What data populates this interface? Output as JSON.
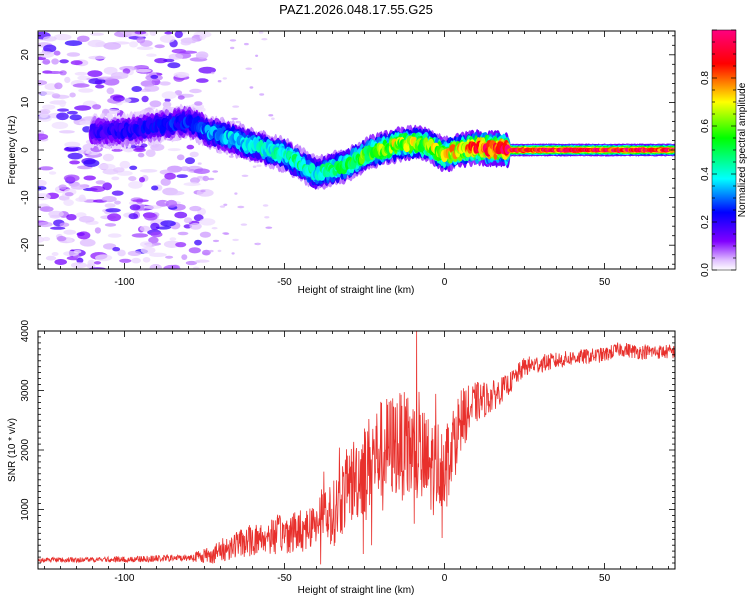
{
  "title": "PAZ1.2026.048.17.55.G25",
  "chart_data": [
    {
      "type": "heatmap",
      "name": "spectrogram",
      "xlabel": "Height of straight line (km)",
      "ylabel": "Frequency (Hz)",
      "xlim": [
        -127,
        72
      ],
      "ylim": [
        -25,
        25
      ],
      "xticks": [
        -100,
        -50,
        0,
        50
      ],
      "xtick_labels": [
        "-100",
        "-50",
        "0",
        "50"
      ],
      "yticks": [
        -20,
        -10,
        0,
        10,
        20
      ],
      "ytick_labels": [
        "-20",
        "-10",
        "0",
        "10",
        "20"
      ],
      "colorbar": {
        "label": "Normalized spectral amplitude",
        "range": [
          0,
          1
        ],
        "ticks": [
          0,
          0.2,
          0.4,
          0.6,
          0.8
        ],
        "tick_labels": [
          "0.0",
          "0.2",
          "0.4",
          "0.6",
          "0.8"
        ],
        "colors": [
          "#ffffff",
          "#e0c0ff",
          "#8000ff",
          "#0000ff",
          "#00ffff",
          "#00ff00",
          "#ffff00",
          "#ff0000",
          "#ff0080"
        ]
      },
      "ridge": {
        "x": [
          -127,
          -100,
          -90,
          -80,
          -74,
          -60,
          -50,
          -45,
          -40,
          -35,
          -30,
          -25,
          -20,
          -15,
          -10,
          -5,
          0,
          5,
          10,
          15,
          20,
          72
        ],
        "y_hz": [
          4,
          4,
          5,
          6,
          4,
          1,
          -1,
          -3,
          -5,
          -4,
          -3,
          -1,
          0,
          1,
          1.5,
          1,
          -1,
          0,
          0.5,
          0.3,
          0,
          0
        ],
        "peak_amplitude": [
          0.15,
          0.2,
          0.22,
          0.25,
          0.3,
          0.4,
          0.42,
          0.45,
          0.4,
          0.45,
          0.5,
          0.55,
          0.6,
          0.65,
          0.62,
          0.6,
          0.68,
          0.72,
          0.8,
          0.85,
          0.92,
          0.9
        ]
      }
    },
    {
      "type": "line",
      "name": "snr",
      "xlabel": "Height of straight line (km)",
      "ylabel": "SNR (10 * v/v)",
      "xlim": [
        -127,
        72
      ],
      "ylim": [
        0,
        4000
      ],
      "xticks": [
        -100,
        -50,
        0,
        50
      ],
      "xtick_labels": [
        "-100",
        "-50",
        "0",
        "50"
      ],
      "yticks": [
        1000,
        2000,
        3000,
        4000
      ],
      "ytick_labels": [
        "1000",
        "2000",
        "3000",
        "4000"
      ],
      "color": "#e8302c",
      "trend": {
        "x": [
          -127,
          -100,
          -80,
          -72,
          -65,
          -55,
          -45,
          -35,
          -30,
          -25,
          -20,
          -15,
          -10,
          -5,
          0,
          5,
          10,
          15,
          20,
          25,
          30,
          40,
          50,
          55,
          60,
          72
        ],
        "y": [
          150,
          160,
          190,
          250,
          420,
          550,
          650,
          900,
          1400,
          1700,
          2000,
          2100,
          2000,
          1700,
          1800,
          2500,
          2800,
          2900,
          3100,
          3400,
          3450,
          3550,
          3600,
          3700,
          3650,
          3650
        ]
      },
      "noise_amplitude": {
        "x": [
          -127,
          -80,
          -70,
          -50,
          -40,
          -30,
          -25,
          -20,
          -15,
          -10,
          -5,
          0,
          10,
          20,
          40,
          72
        ],
        "y": [
          40,
          60,
          200,
          350,
          400,
          700,
          800,
          850,
          900,
          950,
          900,
          700,
          350,
          180,
          130,
          120
        ]
      }
    }
  ]
}
